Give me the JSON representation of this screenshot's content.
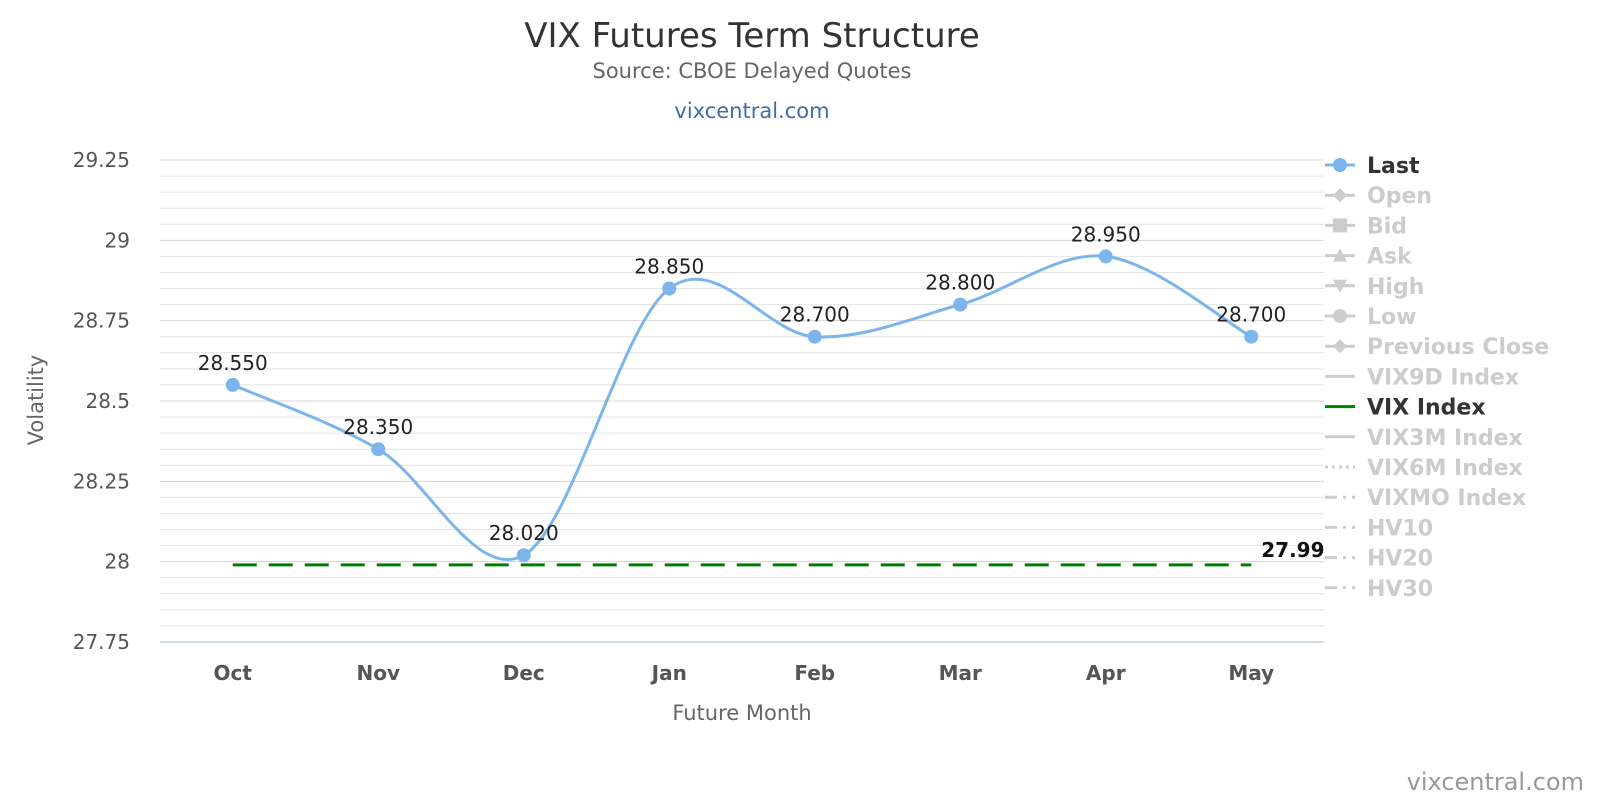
{
  "chart_data": {
    "type": "line",
    "title": "VIX Futures Term Structure",
    "subtitle": "Source: CBOE Delayed Quotes",
    "subtitle_link": "vixcentral.com",
    "xlabel": "Future Month",
    "ylabel": "Volatility",
    "categories": [
      "Oct",
      "Nov",
      "Dec",
      "Jan",
      "Feb",
      "Mar",
      "Apr",
      "May"
    ],
    "ylim": [
      27.75,
      29.25
    ],
    "yticks": [
      "27.75",
      "28",
      "28.25",
      "28.5",
      "28.75",
      "29",
      "29.25"
    ],
    "grid": true,
    "legend_position": "right",
    "series": [
      {
        "name": "Last",
        "color": "#7cb5ec",
        "values": [
          28.55,
          28.35,
          28.02,
          28.85,
          28.7,
          28.8,
          28.95,
          28.7
        ],
        "labels": [
          "28.550",
          "28.350",
          "28.020",
          "28.850",
          "28.700",
          "28.800",
          "28.950",
          "28.700"
        ]
      },
      {
        "name": "VIX Index",
        "color": "#008000",
        "style": "dashed",
        "value": 27.99,
        "label": "27.99"
      }
    ],
    "legend": [
      {
        "name": "Last",
        "active": true,
        "symbol": "circle-line"
      },
      {
        "name": "Open",
        "active": false,
        "symbol": "diamond-line"
      },
      {
        "name": "Bid",
        "active": false,
        "symbol": "square-line"
      },
      {
        "name": "Ask",
        "active": false,
        "symbol": "triangle-line"
      },
      {
        "name": "High",
        "active": false,
        "symbol": "triangle-down-line"
      },
      {
        "name": "Low",
        "active": false,
        "symbol": "circle-line"
      },
      {
        "name": "Previous Close",
        "active": false,
        "symbol": "diamond-line"
      },
      {
        "name": "VIX9D Index",
        "active": false,
        "symbol": "solid-line"
      },
      {
        "name": "VIX Index",
        "active": true,
        "symbol": "solid-line",
        "color": "#008000"
      },
      {
        "name": "VIX3M Index",
        "active": false,
        "symbol": "solid-line"
      },
      {
        "name": "VIX6M Index",
        "active": false,
        "symbol": "dotted-line"
      },
      {
        "name": "VIXMO Index",
        "active": false,
        "symbol": "dashdot-line"
      },
      {
        "name": "HV10",
        "active": false,
        "symbol": "dashdot-line"
      },
      {
        "name": "HV20",
        "active": false,
        "symbol": "dashdot-line"
      },
      {
        "name": "HV30",
        "active": false,
        "symbol": "dashdot-line"
      }
    ],
    "credit": "vixcentral.com"
  }
}
